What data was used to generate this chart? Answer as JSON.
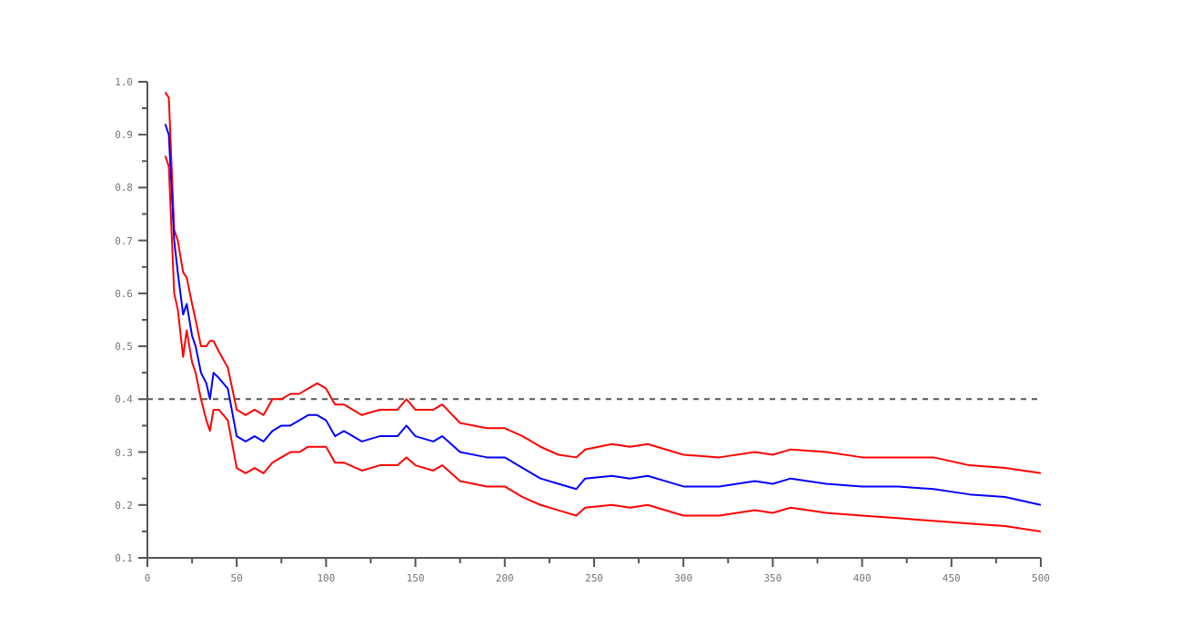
{
  "chart_data": {
    "type": "line",
    "x": [
      10,
      12,
      15,
      17,
      20,
      22,
      25,
      27,
      30,
      33,
      35,
      37,
      40,
      45,
      50,
      55,
      60,
      65,
      70,
      75,
      80,
      85,
      90,
      95,
      100,
      105,
      110,
      120,
      130,
      140,
      145,
      150,
      160,
      165,
      175,
      190,
      200,
      210,
      220,
      230,
      240,
      245,
      260,
      270,
      280,
      300,
      320,
      340,
      350,
      360,
      380,
      400,
      420,
      440,
      460,
      480,
      500
    ],
    "series": [
      {
        "color": "#ff0000",
        "values": [
          0.98,
          0.97,
          0.72,
          0.7,
          0.64,
          0.63,
          0.58,
          0.55,
          0.5,
          0.5,
          0.51,
          0.51,
          0.49,
          0.46,
          0.38,
          0.37,
          0.38,
          0.37,
          0.4,
          0.4,
          0.41,
          0.41,
          0.42,
          0.43,
          0.42,
          0.39,
          0.39,
          0.37,
          0.38,
          0.38,
          0.4,
          0.38,
          0.38,
          0.39,
          0.355,
          0.345,
          0.345,
          0.33,
          0.31,
          0.295,
          0.29,
          0.305,
          0.315,
          0.31,
          0.315,
          0.295,
          0.29,
          0.3,
          0.295,
          0.305,
          0.3,
          0.29,
          0.29,
          0.29,
          0.275,
          0.27,
          0.26
        ]
      },
      {
        "color": "#0000ff",
        "values": [
          0.92,
          0.9,
          0.7,
          0.64,
          0.56,
          0.58,
          0.52,
          0.5,
          0.45,
          0.43,
          0.4,
          0.45,
          0.44,
          0.42,
          0.33,
          0.32,
          0.33,
          0.32,
          0.34,
          0.35,
          0.35,
          0.36,
          0.37,
          0.37,
          0.36,
          0.33,
          0.34,
          0.32,
          0.33,
          0.33,
          0.35,
          0.33,
          0.32,
          0.33,
          0.3,
          0.29,
          0.29,
          0.27,
          0.25,
          0.24,
          0.23,
          0.25,
          0.255,
          0.25,
          0.255,
          0.235,
          0.235,
          0.245,
          0.24,
          0.25,
          0.24,
          0.235,
          0.235,
          0.23,
          0.22,
          0.215,
          0.2
        ]
      },
      {
        "color": "#ff0000",
        "values": [
          0.86,
          0.84,
          0.6,
          0.57,
          0.48,
          0.53,
          0.47,
          0.45,
          0.4,
          0.36,
          0.34,
          0.38,
          0.38,
          0.36,
          0.27,
          0.26,
          0.27,
          0.26,
          0.28,
          0.29,
          0.3,
          0.3,
          0.31,
          0.31,
          0.31,
          0.28,
          0.28,
          0.265,
          0.275,
          0.275,
          0.29,
          0.275,
          0.265,
          0.275,
          0.245,
          0.235,
          0.235,
          0.215,
          0.2,
          0.19,
          0.18,
          0.195,
          0.2,
          0.195,
          0.2,
          0.18,
          0.18,
          0.19,
          0.185,
          0.195,
          0.185,
          0.18,
          0.175,
          0.17,
          0.165,
          0.16,
          0.15
        ]
      }
    ],
    "xlim": [
      0,
      500
    ],
    "ylim": [
      0.1,
      1.0
    ],
    "xticks": [
      0,
      {
        "value": 25,
        "label": null
      },
      50,
      {
        "value": 75,
        "label": null
      },
      100,
      {
        "value": 125,
        "label": null
      },
      150,
      {
        "value": 175,
        "label": null
      },
      200,
      {
        "value": 225,
        "label": null
      },
      250,
      {
        "value": 275,
        "label": null
      },
      300,
      {
        "value": 325,
        "label": null
      },
      350,
      {
        "value": 375,
        "label": null
      },
      400,
      {
        "value": 425,
        "label": null
      },
      450,
      {
        "value": 475,
        "label": null
      },
      500
    ],
    "yticks": [
      0.1,
      {
        "value": 0.15,
        "label": null
      },
      0.2,
      {
        "value": 0.25,
        "label": null
      },
      0.3,
      {
        "value": 0.35,
        "label": null
      },
      0.4,
      {
        "value": 0.45,
        "label": null
      },
      0.5,
      {
        "value": 0.55,
        "label": null
      },
      0.6,
      {
        "value": 0.65,
        "label": null
      },
      0.7,
      {
        "value": 0.75,
        "label": null
      },
      0.8,
      {
        "value": 0.85,
        "label": null
      },
      0.9,
      {
        "value": 0.95,
        "label": null
      },
      {
        "value": 1.0,
        "label": "1.0"
      }
    ],
    "ref_lines": [
      {
        "axis": "y",
        "value": 0.4,
        "color": "#555555",
        "line_style": "dashed"
      }
    ],
    "grid": false,
    "line_style": "solid",
    "marker": "none"
  }
}
